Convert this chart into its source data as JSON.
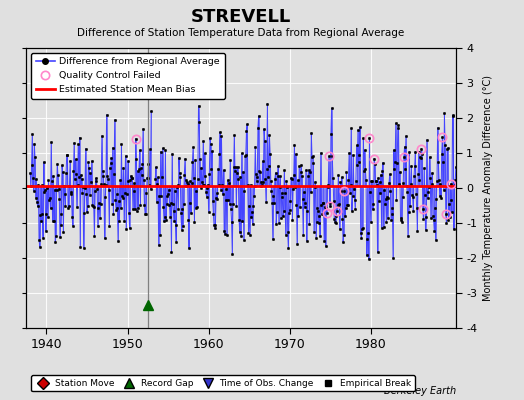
{
  "title": "STREVELL",
  "subtitle": "Difference of Station Temperature Data from Regional Average",
  "ylabel": "Monthly Temperature Anomaly Difference (°C)",
  "xlim": [
    1937.5,
    1990.5
  ],
  "ylim": [
    -4,
    4
  ],
  "yticks": [
    -4,
    -3,
    -2,
    -1,
    0,
    1,
    2,
    3,
    4
  ],
  "xticks": [
    1940,
    1950,
    1960,
    1970,
    1980
  ],
  "bias_level": 0.05,
  "gap_line_x": 1952.5,
  "gap_marker_y": -3.35,
  "background_color": "#e0e0e0",
  "plot_bg_color": "#e0e0e0",
  "line_color": "#4444ff",
  "bias_color": "#ff0000",
  "berkeley_earth_text": "Berkeley Earth"
}
